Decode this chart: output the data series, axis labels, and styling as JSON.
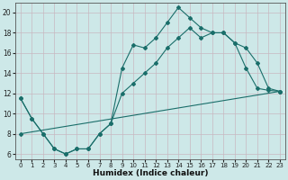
{
  "title": "",
  "xlabel": "Humidex (Indice chaleur)",
  "ylabel": "",
  "bg_color": "#cde8e8",
  "grid_color": "#b8d8d8",
  "line_color": "#1a6e6a",
  "xlim": [
    -0.5,
    23.5
  ],
  "ylim": [
    5.5,
    21.0
  ],
  "xticks": [
    0,
    1,
    2,
    3,
    4,
    5,
    6,
    7,
    8,
    9,
    10,
    11,
    12,
    13,
    14,
    15,
    16,
    17,
    18,
    19,
    20,
    21,
    22,
    23
  ],
  "yticks": [
    6,
    8,
    10,
    12,
    14,
    16,
    18,
    20
  ],
  "series1_x": [
    0,
    1,
    2,
    3,
    4,
    5,
    6,
    7,
    8,
    9,
    10,
    11,
    12,
    13,
    14,
    15,
    16,
    17,
    18,
    19,
    20,
    21,
    22,
    23
  ],
  "series1_y": [
    11.5,
    9.5,
    8.0,
    6.5,
    6.0,
    6.5,
    6.5,
    8.0,
    9.0,
    14.5,
    16.8,
    16.5,
    17.5,
    19.0,
    20.5,
    19.5,
    18.5,
    18.0,
    18.0,
    17.0,
    14.5,
    12.5,
    12.3,
    12.2
  ],
  "series2_x": [
    0,
    1,
    2,
    3,
    4,
    5,
    6,
    7,
    8,
    9,
    10,
    11,
    12,
    13,
    14,
    15,
    16,
    17,
    18,
    19,
    20,
    21,
    22,
    23
  ],
  "series2_y": [
    11.5,
    9.5,
    8.0,
    6.5,
    6.0,
    6.5,
    6.5,
    8.0,
    9.0,
    12.0,
    13.0,
    14.0,
    15.0,
    16.5,
    17.5,
    18.5,
    17.5,
    18.0,
    18.0,
    17.0,
    16.5,
    15.0,
    12.5,
    12.2
  ],
  "series3_x": [
    0,
    23
  ],
  "series3_y": [
    8.0,
    12.2
  ]
}
